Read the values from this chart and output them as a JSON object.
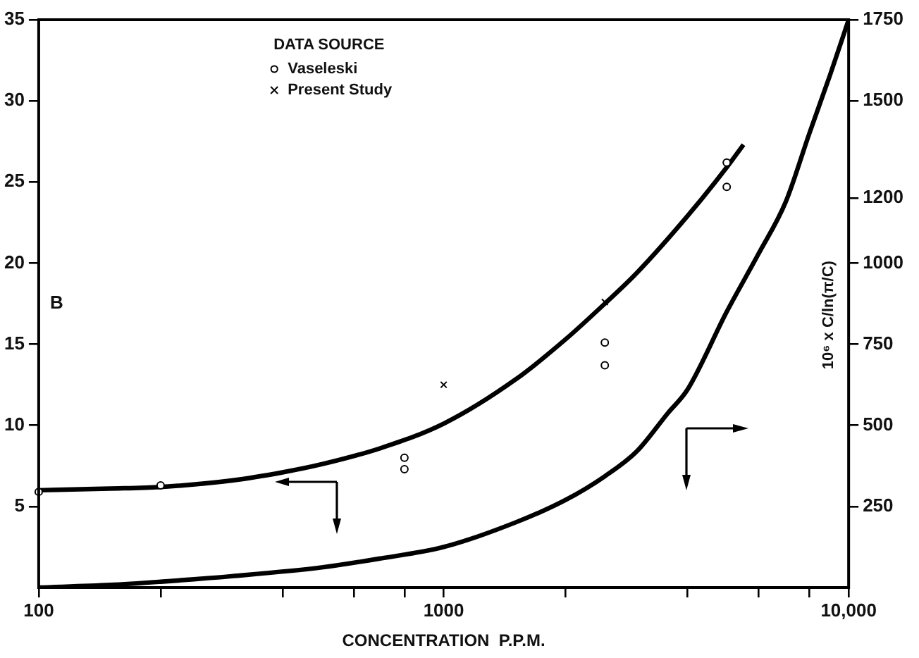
{
  "chart_data": {
    "type": "line",
    "xlabel": "CONCENTRATION  P.P.M.",
    "ylabel": "B",
    "y2label": "10⁶ x C/ln(π/C)",
    "legend_title": "DATA SOURCE",
    "legend": "top",
    "log": "x",
    "grid": false,
    "xlim": [
      100,
      10000
    ],
    "xticks": [
      {
        "value": 100,
        "label": "100"
      },
      {
        "value": 200,
        "label": null
      },
      {
        "value": 400,
        "label": null
      },
      {
        "value": 600,
        "label": null
      },
      {
        "value": 800,
        "label": null
      },
      {
        "value": 1000,
        "label": "1000"
      },
      {
        "value": 2000,
        "label": null
      },
      {
        "value": 4000,
        "label": null
      },
      {
        "value": 6000,
        "label": null
      },
      {
        "value": 8000,
        "label": null
      },
      {
        "value": 10000,
        "label": "10,000"
      }
    ],
    "ylim": [
      0,
      35
    ],
    "yticks": [
      5,
      10,
      15,
      20,
      25,
      30,
      35
    ],
    "y2lim": [
      0,
      1750
    ],
    "y2ticks": [
      250,
      500,
      750,
      1000,
      1200,
      1500,
      1750
    ],
    "series": [
      {
        "name": "Vaseleski",
        "type": "scatter",
        "marker": "circle",
        "color": "#000000",
        "x": [
          100,
          200,
          800,
          800,
          2500,
          2500,
          5000,
          5000
        ],
        "values": [
          5.9,
          6.3,
          8.0,
          7.3,
          15.1,
          13.7,
          26.2,
          24.7
        ]
      },
      {
        "name": "Present Study",
        "type": "scatter",
        "marker": "cross",
        "color": "#000000",
        "x": [
          1000,
          2500
        ],
        "values": [
          12.5,
          17.6
        ]
      },
      {
        "type": "line",
        "marker": "none",
        "color": "#000000",
        "x": [
          100,
          150,
          200,
          300,
          400,
          500,
          700,
          1000,
          1500,
          2000,
          2500,
          3000,
          4000,
          5000,
          5500
        ],
        "values": [
          6.0,
          6.1,
          6.2,
          6.6,
          7.1,
          7.6,
          8.6,
          10.1,
          12.8,
          15.3,
          17.5,
          19.4,
          22.9,
          25.9,
          27.3
        ]
      },
      {
        "type": "line",
        "axis": "y2",
        "marker": "none",
        "color": "#000000",
        "x": [
          100,
          150,
          200,
          300,
          500,
          700,
          1000,
          1500,
          2000,
          2500,
          3000,
          3580,
          4000,
          5000,
          6000,
          7000,
          8000,
          9000,
          10000
        ],
        "values": [
          0,
          8,
          18,
          35,
          62,
          90,
          125,
          200,
          270,
          343,
          420,
          538,
          610,
          850,
          1030,
          1190,
          1400,
          1580,
          1750
        ]
      }
    ]
  }
}
